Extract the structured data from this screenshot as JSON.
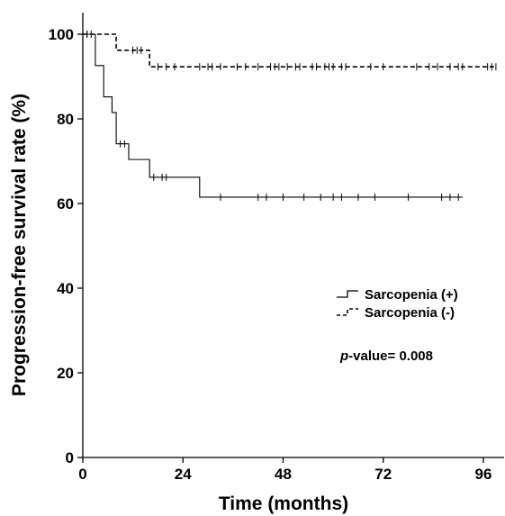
{
  "chart_data": {
    "type": "line",
    "subtype": "kaplan-meier",
    "title": "",
    "xlabel": "Time (months)",
    "ylabel": "Progression-free survival rate (%)",
    "xlim": [
      0,
      102
    ],
    "ylim": [
      0,
      100
    ],
    "x_ticks": [
      0,
      24,
      48,
      72,
      96
    ],
    "y_ticks": [
      0,
      20,
      40,
      60,
      80,
      100
    ],
    "x_tick_labels": [
      "0",
      "24",
      "48",
      "72",
      "96"
    ],
    "y_tick_labels": [
      "0",
      "20",
      "40",
      "60",
      "80",
      "100"
    ],
    "grid": false,
    "legend_position": "right",
    "annotation": {
      "italic": "p",
      "rest": "-value= 0.008"
    },
    "series": [
      {
        "name": "Sarcopenia (+)",
        "style": "solid",
        "color": "#000000",
        "steps": [
          [
            0,
            100
          ],
          [
            3,
            92.6
          ],
          [
            5,
            85.2
          ],
          [
            7,
            81.5
          ],
          [
            8,
            74.1
          ],
          [
            11,
            70.4
          ],
          [
            16,
            66.2
          ],
          [
            28,
            61.5
          ],
          [
            91,
            61.5
          ]
        ],
        "censor_x": [
          1,
          9,
          10,
          17,
          19,
          20,
          33,
          42,
          44,
          48,
          53,
          57,
          60,
          62,
          66,
          70,
          78,
          86,
          88,
          90
        ]
      },
      {
        "name": "Sarcopenia (-)",
        "style": "dashed",
        "color": "#000000",
        "steps": [
          [
            0,
            100
          ],
          [
            8,
            96.2
          ],
          [
            16,
            92.3
          ],
          [
            99,
            92.3
          ]
        ],
        "censor_x": [
          1,
          2,
          12,
          13,
          14,
          18,
          20,
          22,
          28,
          30,
          31,
          33,
          37,
          39,
          42,
          45,
          46,
          47,
          49,
          51,
          52,
          55,
          56,
          58,
          59,
          60,
          62,
          63,
          69,
          72,
          80,
          83,
          85,
          88,
          90,
          91,
          97,
          98,
          99
        ]
      }
    ]
  }
}
